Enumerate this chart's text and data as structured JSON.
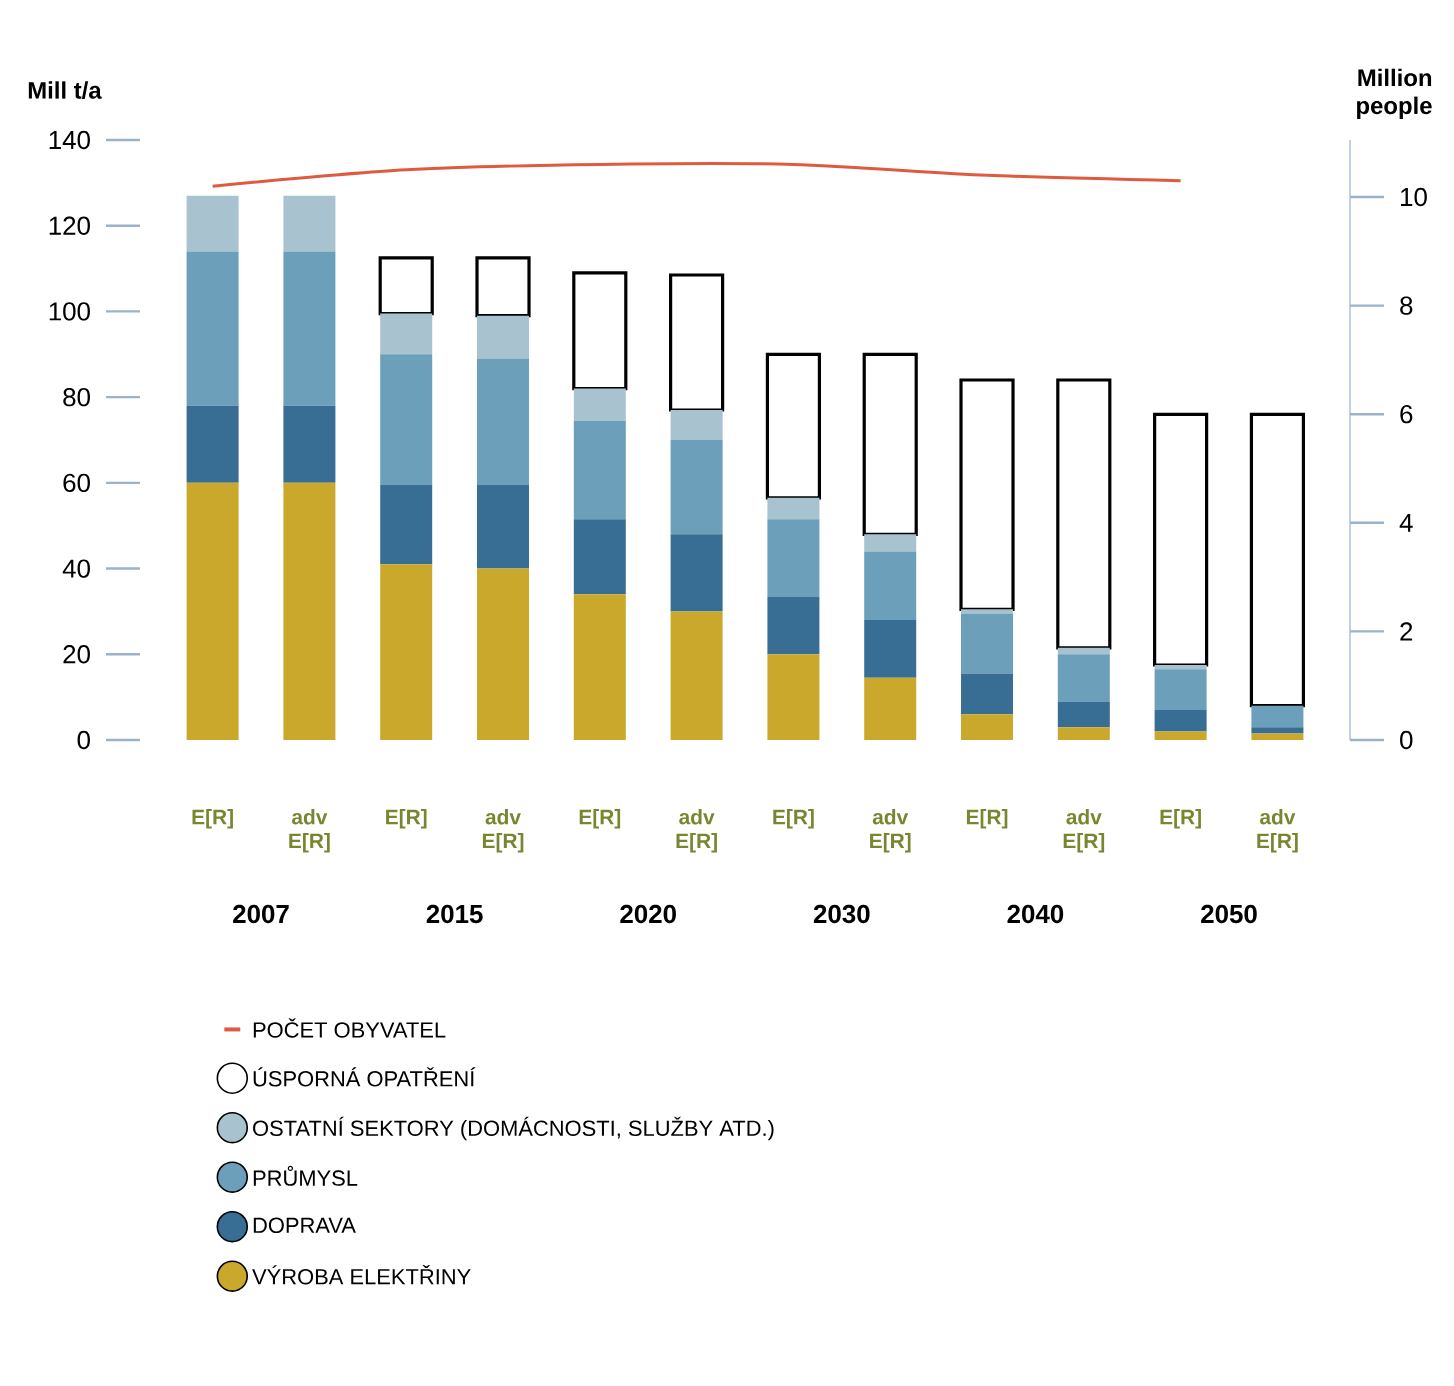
{
  "chart_data": {
    "type": "bar",
    "stacked": true,
    "categories": [
      "E[R]",
      "adv E[R]",
      "E[R]",
      "adv E[R]",
      "E[R]",
      "adv E[R]",
      "E[R]",
      "adv E[R]",
      "E[R]",
      "adv E[R]",
      "E[R]",
      "adv E[R]"
    ],
    "series": [
      {
        "name": "VÝROBA ELEKTŘINY",
        "color": "#c9a82c",
        "values": [
          60,
          60,
          41,
          40,
          34,
          30,
          20,
          14.5,
          6,
          3,
          2,
          1.5
        ]
      },
      {
        "name": "DOPRAVA",
        "color": "#386e93",
        "values": [
          18,
          18,
          18.5,
          19.5,
          17.5,
          18,
          13.5,
          13.5,
          9.5,
          6,
          5,
          1.5
        ]
      },
      {
        "name": "PRŮMYSL",
        "color": "#6b9fba",
        "values": [
          36,
          36,
          30.5,
          29.5,
          23,
          22,
          18,
          16,
          14,
          11,
          9.5,
          5
        ]
      },
      {
        "name": "OSTATNÍ SEKTORY (DOMÁCNOSTI, SLUŽBY ATD.)",
        "color": "#a8c3cf",
        "values": [
          13,
          13,
          9.5,
          10,
          7.5,
          7,
          5,
          4,
          1,
          1.5,
          1,
          null
        ]
      },
      {
        "name": "ÚSPORNÁ OPATŘENÍ",
        "color": "#ffffff",
        "values": [
          null,
          null,
          13,
          13.5,
          27,
          31.5,
          33.5,
          42,
          53.5,
          62.5,
          58.5,
          68
        ]
      },
      {
        "name": "POČET OBYVATEL",
        "type": "line",
        "axis": "y2",
        "color": "#e05a40",
        "values": [
          10.2,
          null,
          10.5,
          null,
          10.6,
          null,
          10.6,
          null,
          10.4,
          null,
          10.3,
          null
        ]
      }
    ],
    "ylim": [
      0,
      140
    ],
    "yticks": [
      0,
      20,
      40,
      60,
      80,
      100,
      120,
      140
    ],
    "y2lim": [
      0,
      11.05
    ],
    "y2ticks": [
      0,
      2,
      4,
      6,
      8,
      10
    ],
    "ylabel": "Mill t/a",
    "y2label": "Million people",
    "annotations": [
      "2007",
      "2015",
      "2020",
      "2030",
      "2040",
      "2050"
    ],
    "legend": "bottom"
  }
}
